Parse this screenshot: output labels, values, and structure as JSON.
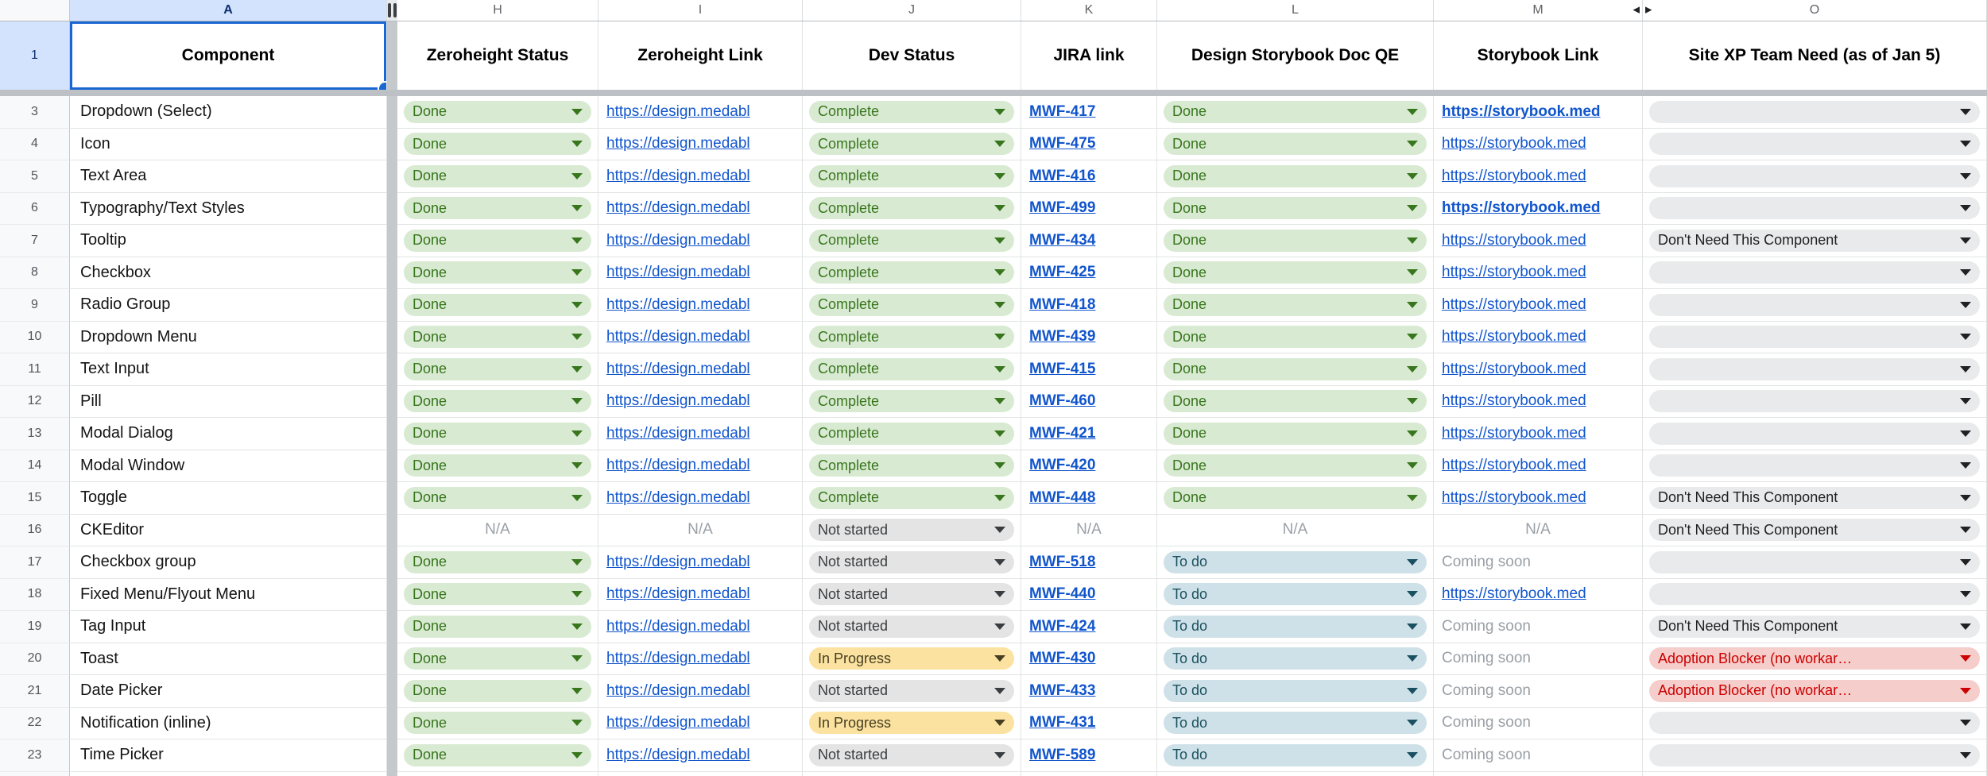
{
  "colors": {
    "link": "#1155cc",
    "selection_blue": "#1967d2",
    "selected_header_bg": "#d3e3fd",
    "frozen_divider": "#bdc1c6",
    "muted_text": "#9aa0a6"
  },
  "palettes": {
    "green": {
      "bg": "#d9ead3",
      "fg": "#38761d"
    },
    "gray": {
      "bg": "#e4e4e4",
      "fg": "#3a3d40"
    },
    "yellow": {
      "bg": "#fbe2a0",
      "fg": "#463e20"
    },
    "blue": {
      "bg": "#cfe1e8",
      "fg": "#19505f"
    },
    "red": {
      "bg": "#f5cdca",
      "fg": "#cc0000"
    },
    "neutral": {
      "bg": "#e8eaeb",
      "fg": "#202124"
    }
  },
  "column_letters": [
    {
      "letter": "A",
      "selected": true,
      "width_class": "w-a"
    },
    {
      "letter": "H",
      "width_class": "w-h"
    },
    {
      "letter": "I",
      "width_class": "w-i"
    },
    {
      "letter": "J",
      "width_class": "w-j"
    },
    {
      "letter": "K",
      "width_class": "w-k"
    },
    {
      "letter": "L",
      "width_class": "w-l",
      "hidden_after": true
    },
    {
      "letter": "M",
      "width_class": "w-m",
      "hidden_after_arrow": true
    },
    {
      "letter": "O",
      "width_class": "w-o",
      "hidden_before_arrow": true
    }
  ],
  "row1_number": "1",
  "header": {
    "component": "Component",
    "zeroheight_status": "Zeroheight Status",
    "zeroheight_link": "Zeroheight Link",
    "dev_status": "Dev Status",
    "jira_link": "JIRA link",
    "design_qe": "Design Storybook Doc QE",
    "storybook_link": "Storybook Link",
    "site_xp": "Site XP Team Need (as of Jan 5)"
  },
  "rows": [
    {
      "num": "3",
      "component": "Dropdown (Select)",
      "cells": [
        {
          "t": "chip",
          "palette": "green",
          "label": "Done"
        },
        {
          "t": "link",
          "label": "https://design.medabl"
        },
        {
          "t": "chip",
          "palette": "green",
          "label": "Complete"
        },
        {
          "t": "link",
          "bold": true,
          "label": "MWF-417"
        },
        {
          "t": "chip",
          "palette": "green",
          "label": "Done"
        },
        {
          "t": "link",
          "bold": true,
          "label": "https://storybook.med"
        },
        {
          "t": "chip",
          "palette": "neutral",
          "label": ""
        }
      ]
    },
    {
      "num": "4",
      "component": "Icon",
      "cells": [
        {
          "t": "chip",
          "palette": "green",
          "label": "Done"
        },
        {
          "t": "link",
          "label": "https://design.medabl"
        },
        {
          "t": "chip",
          "palette": "green",
          "label": "Complete"
        },
        {
          "t": "link",
          "bold": true,
          "label": "MWF-475"
        },
        {
          "t": "chip",
          "palette": "green",
          "label": "Done"
        },
        {
          "t": "link",
          "label": "https://storybook.med"
        },
        {
          "t": "chip",
          "palette": "neutral",
          "label": ""
        }
      ]
    },
    {
      "num": "5",
      "component": "Text Area",
      "cells": [
        {
          "t": "chip",
          "palette": "green",
          "label": "Done"
        },
        {
          "t": "link",
          "label": "https://design.medabl"
        },
        {
          "t": "chip",
          "palette": "green",
          "label": "Complete"
        },
        {
          "t": "link",
          "bold": true,
          "label": "MWF-416"
        },
        {
          "t": "chip",
          "palette": "green",
          "label": "Done"
        },
        {
          "t": "link",
          "label": "https://storybook.med"
        },
        {
          "t": "chip",
          "palette": "neutral",
          "label": ""
        }
      ]
    },
    {
      "num": "6",
      "component": "Typography/Text Styles",
      "cells": [
        {
          "t": "chip",
          "palette": "green",
          "label": "Done"
        },
        {
          "t": "link",
          "label": "https://design.medabl"
        },
        {
          "t": "chip",
          "palette": "green",
          "label": "Complete"
        },
        {
          "t": "link",
          "bold": true,
          "label": "MWF-499"
        },
        {
          "t": "chip",
          "palette": "green",
          "label": "Done"
        },
        {
          "t": "link",
          "bold": true,
          "label": "https://storybook.med"
        },
        {
          "t": "chip",
          "palette": "neutral",
          "label": ""
        }
      ]
    },
    {
      "num": "7",
      "component": "Tooltip",
      "cells": [
        {
          "t": "chip",
          "palette": "green",
          "label": "Done"
        },
        {
          "t": "link",
          "label": "https://design.medabl"
        },
        {
          "t": "chip",
          "palette": "green",
          "label": "Complete"
        },
        {
          "t": "link",
          "bold": true,
          "label": "MWF-434"
        },
        {
          "t": "chip",
          "palette": "green",
          "label": "Done"
        },
        {
          "t": "link",
          "label": "https://storybook.med"
        },
        {
          "t": "chip",
          "palette": "neutral",
          "label": "Don't Need This Component"
        }
      ]
    },
    {
      "num": "8",
      "component": "Checkbox",
      "cells": [
        {
          "t": "chip",
          "palette": "green",
          "label": "Done"
        },
        {
          "t": "link",
          "label": "https://design.medabl"
        },
        {
          "t": "chip",
          "palette": "green",
          "label": "Complete"
        },
        {
          "t": "link",
          "bold": true,
          "label": "MWF-425"
        },
        {
          "t": "chip",
          "palette": "green",
          "label": "Done"
        },
        {
          "t": "link",
          "label": "https://storybook.med"
        },
        {
          "t": "chip",
          "palette": "neutral",
          "label": ""
        }
      ]
    },
    {
      "num": "9",
      "component": "Radio Group",
      "cells": [
        {
          "t": "chip",
          "palette": "green",
          "label": "Done"
        },
        {
          "t": "link",
          "label": "https://design.medabl"
        },
        {
          "t": "chip",
          "palette": "green",
          "label": "Complete"
        },
        {
          "t": "link",
          "bold": true,
          "label": "MWF-418"
        },
        {
          "t": "chip",
          "palette": "green",
          "label": "Done"
        },
        {
          "t": "link",
          "label": "https://storybook.med"
        },
        {
          "t": "chip",
          "palette": "neutral",
          "label": ""
        }
      ]
    },
    {
      "num": "10",
      "component": "Dropdown Menu",
      "cells": [
        {
          "t": "chip",
          "palette": "green",
          "label": "Done"
        },
        {
          "t": "link",
          "label": "https://design.medabl"
        },
        {
          "t": "chip",
          "palette": "green",
          "label": "Complete"
        },
        {
          "t": "link",
          "bold": true,
          "label": "MWF-439"
        },
        {
          "t": "chip",
          "palette": "green",
          "label": "Done"
        },
        {
          "t": "link",
          "label": "https://storybook.med"
        },
        {
          "t": "chip",
          "palette": "neutral",
          "label": ""
        }
      ]
    },
    {
      "num": "11",
      "component": "Text Input",
      "cells": [
        {
          "t": "chip",
          "palette": "green",
          "label": "Done"
        },
        {
          "t": "link",
          "label": "https://design.medabl"
        },
        {
          "t": "chip",
          "palette": "green",
          "label": "Complete"
        },
        {
          "t": "link",
          "bold": true,
          "label": "MWF-415"
        },
        {
          "t": "chip",
          "palette": "green",
          "label": "Done"
        },
        {
          "t": "link",
          "label": "https://storybook.med"
        },
        {
          "t": "chip",
          "palette": "neutral",
          "label": ""
        }
      ]
    },
    {
      "num": "12",
      "component": "Pill",
      "cells": [
        {
          "t": "chip",
          "palette": "green",
          "label": "Done"
        },
        {
          "t": "link",
          "label": "https://design.medabl"
        },
        {
          "t": "chip",
          "palette": "green",
          "label": "Complete"
        },
        {
          "t": "link",
          "bold": true,
          "label": "MWF-460"
        },
        {
          "t": "chip",
          "palette": "green",
          "label": "Done"
        },
        {
          "t": "link",
          "label": "https://storybook.med"
        },
        {
          "t": "chip",
          "palette": "neutral",
          "label": ""
        }
      ]
    },
    {
      "num": "13",
      "component": "Modal Dialog",
      "cells": [
        {
          "t": "chip",
          "palette": "green",
          "label": "Done"
        },
        {
          "t": "link",
          "label": "https://design.medabl"
        },
        {
          "t": "chip",
          "palette": "green",
          "label": "Complete"
        },
        {
          "t": "link",
          "bold": true,
          "label": "MWF-421"
        },
        {
          "t": "chip",
          "palette": "green",
          "label": "Done"
        },
        {
          "t": "link",
          "label": "https://storybook.med"
        },
        {
          "t": "chip",
          "palette": "neutral",
          "label": ""
        }
      ]
    },
    {
      "num": "14",
      "component": "Modal Window",
      "cells": [
        {
          "t": "chip",
          "palette": "green",
          "label": "Done"
        },
        {
          "t": "link",
          "label": "https://design.medabl"
        },
        {
          "t": "chip",
          "palette": "green",
          "label": "Complete"
        },
        {
          "t": "link",
          "bold": true,
          "label": "MWF-420"
        },
        {
          "t": "chip",
          "palette": "green",
          "label": "Done"
        },
        {
          "t": "link",
          "label": "https://storybook.med"
        },
        {
          "t": "chip",
          "palette": "neutral",
          "label": ""
        }
      ]
    },
    {
      "num": "15",
      "component": "Toggle",
      "cells": [
        {
          "t": "chip",
          "palette": "green",
          "label": "Done"
        },
        {
          "t": "link",
          "label": "https://design.medabl"
        },
        {
          "t": "chip",
          "palette": "green",
          "label": "Complete"
        },
        {
          "t": "link",
          "bold": true,
          "label": "MWF-448"
        },
        {
          "t": "chip",
          "palette": "green",
          "label": "Done"
        },
        {
          "t": "link",
          "label": "https://storybook.med"
        },
        {
          "t": "chip",
          "palette": "neutral",
          "label": "Don't Need This Component"
        }
      ]
    },
    {
      "num": "16",
      "component": "CKEditor",
      "cells": [
        {
          "t": "na",
          "label": "N/A"
        },
        {
          "t": "na",
          "label": "N/A"
        },
        {
          "t": "chip",
          "palette": "gray",
          "label": "Not started"
        },
        {
          "t": "na",
          "label": "N/A"
        },
        {
          "t": "na",
          "label": "N/A"
        },
        {
          "t": "na",
          "label": "N/A"
        },
        {
          "t": "chip",
          "palette": "neutral",
          "label": "Don't Need This Component"
        }
      ]
    },
    {
      "num": "17",
      "component": "Checkbox group",
      "cells": [
        {
          "t": "chip",
          "palette": "green",
          "label": "Done"
        },
        {
          "t": "link",
          "label": "https://design.medabl"
        },
        {
          "t": "chip",
          "palette": "gray",
          "label": "Not started"
        },
        {
          "t": "link",
          "bold": true,
          "label": "MWF-518"
        },
        {
          "t": "chip",
          "palette": "blue",
          "label": "To do"
        },
        {
          "t": "text",
          "muted": true,
          "label": "Coming soon"
        },
        {
          "t": "chip",
          "palette": "neutral",
          "label": ""
        }
      ]
    },
    {
      "num": "18",
      "component": "Fixed Menu/Flyout Menu",
      "cells": [
        {
          "t": "chip",
          "palette": "green",
          "label": "Done"
        },
        {
          "t": "link",
          "label": "https://design.medabl"
        },
        {
          "t": "chip",
          "palette": "gray",
          "label": "Not started"
        },
        {
          "t": "link",
          "bold": true,
          "label": "MWF-440"
        },
        {
          "t": "chip",
          "palette": "blue",
          "label": "To do"
        },
        {
          "t": "link",
          "label": "https://storybook.med"
        },
        {
          "t": "chip",
          "palette": "neutral",
          "label": ""
        }
      ]
    },
    {
      "num": "19",
      "component": "Tag Input",
      "cells": [
        {
          "t": "chip",
          "palette": "green",
          "label": "Done"
        },
        {
          "t": "link",
          "label": "https://design.medabl"
        },
        {
          "t": "chip",
          "palette": "gray",
          "label": "Not started"
        },
        {
          "t": "link",
          "bold": true,
          "label": "MWF-424"
        },
        {
          "t": "chip",
          "palette": "blue",
          "label": "To do"
        },
        {
          "t": "text",
          "muted": true,
          "label": "Coming soon"
        },
        {
          "t": "chip",
          "palette": "neutral",
          "label": "Don't Need This Component"
        }
      ]
    },
    {
      "num": "20",
      "component": "Toast",
      "cells": [
        {
          "t": "chip",
          "palette": "green",
          "label": "Done"
        },
        {
          "t": "link",
          "label": "https://design.medabl"
        },
        {
          "t": "chip",
          "palette": "yellow",
          "label": "In Progress"
        },
        {
          "t": "link",
          "bold": true,
          "label": "MWF-430"
        },
        {
          "t": "chip",
          "palette": "blue",
          "label": "To do"
        },
        {
          "t": "text",
          "muted": true,
          "label": "Coming soon"
        },
        {
          "t": "chip",
          "palette": "red",
          "label": "Adoption Blocker (no workar…"
        }
      ]
    },
    {
      "num": "21",
      "component": "Date Picker",
      "cells": [
        {
          "t": "chip",
          "palette": "green",
          "label": "Done"
        },
        {
          "t": "link",
          "label": "https://design.medabl"
        },
        {
          "t": "chip",
          "palette": "gray",
          "label": "Not started"
        },
        {
          "t": "link",
          "bold": true,
          "label": "MWF-433"
        },
        {
          "t": "chip",
          "palette": "blue",
          "label": "To do"
        },
        {
          "t": "text",
          "muted": true,
          "label": "Coming soon"
        },
        {
          "t": "chip",
          "palette": "red",
          "label": "Adoption Blocker (no workar…"
        }
      ]
    },
    {
      "num": "22",
      "component": "Notification (inline)",
      "cells": [
        {
          "t": "chip",
          "palette": "green",
          "label": "Done"
        },
        {
          "t": "link",
          "label": "https://design.medabl"
        },
        {
          "t": "chip",
          "palette": "yellow",
          "label": "In Progress"
        },
        {
          "t": "link",
          "bold": true,
          "label": "MWF-431"
        },
        {
          "t": "chip",
          "palette": "blue",
          "label": "To do"
        },
        {
          "t": "text",
          "muted": true,
          "label": "Coming soon"
        },
        {
          "t": "chip",
          "palette": "neutral",
          "label": ""
        }
      ]
    },
    {
      "num": "23",
      "component": "Time Picker",
      "cells": [
        {
          "t": "chip",
          "palette": "green",
          "label": "Done"
        },
        {
          "t": "link",
          "label": "https://design.medabl"
        },
        {
          "t": "chip",
          "palette": "gray",
          "label": "Not started"
        },
        {
          "t": "link",
          "bold": true,
          "label": "MWF-589"
        },
        {
          "t": "chip",
          "palette": "blue",
          "label": "To do"
        },
        {
          "t": "text",
          "muted": true,
          "label": "Coming soon"
        },
        {
          "t": "chip",
          "palette": "neutral",
          "label": ""
        }
      ]
    },
    {
      "num": "",
      "partial": true,
      "component": "",
      "cells": [
        {
          "t": "chip",
          "palette": "green",
          "label": ""
        },
        {
          "t": "blank"
        },
        {
          "t": "chip",
          "palette": "gray",
          "label": ""
        },
        {
          "t": "blank"
        },
        {
          "t": "chip",
          "palette": "blue",
          "label": ""
        },
        {
          "t": "blank"
        },
        {
          "t": "chip",
          "palette": "neutral",
          "label": ""
        }
      ]
    }
  ]
}
